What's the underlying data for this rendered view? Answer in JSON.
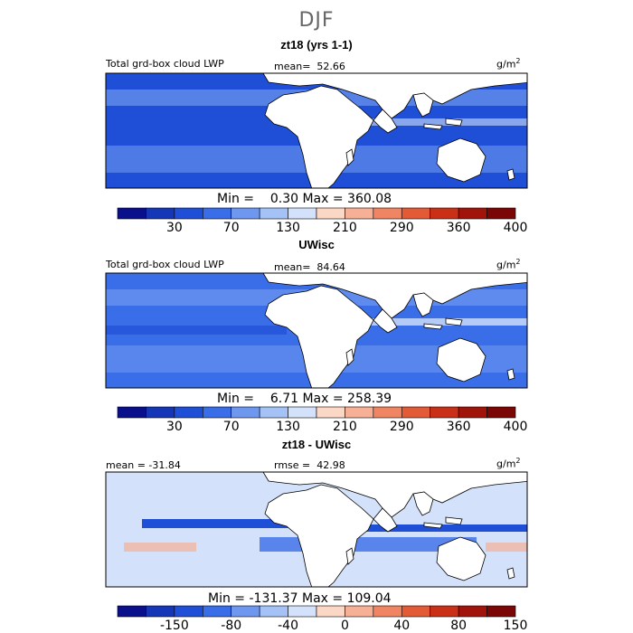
{
  "figure": {
    "title": "DJF",
    "panels": [
      {
        "subtitle": "zt18 (yrs 1-1)",
        "left_label": "Total grd-box cloud LWP",
        "center_label": "mean=  52.66",
        "units": "g/m",
        "units_sup": "2",
        "min_label": "Min =",
        "min_value": "0.30",
        "max_label": "Max =",
        "max_value": "360.08",
        "colorbar_ticks": [
          "30",
          "70",
          "130",
          "210",
          "290",
          "360",
          "400"
        ]
      },
      {
        "subtitle": "UWisc",
        "left_label": "Total grd-box cloud LWP",
        "center_label": "mean=  84.64",
        "units": "g/m",
        "units_sup": "2",
        "min_label": "Min =",
        "min_value": "6.71",
        "max_label": "Max =",
        "max_value": "258.39",
        "colorbar_ticks": [
          "30",
          "70",
          "130",
          "210",
          "290",
          "360",
          "400"
        ]
      },
      {
        "subtitle": "zt18 - UWisc",
        "left_label": "mean = -31.84",
        "center_label": "rmse =  42.98",
        "units": "g/m",
        "units_sup": "2",
        "min_label": "Min =",
        "min_value": "-131.37",
        "max_label": "Max =",
        "max_value": "109.04",
        "colorbar_ticks": [
          "-150",
          "-80",
          "-40",
          "0",
          "40",
          "80",
          "150"
        ]
      }
    ],
    "colorbar_colors": [
      "#0a0f8c",
      "#1636b8",
      "#1f4fd6",
      "#3a6de8",
      "#6e98f0",
      "#a4c2f6",
      "#d3e2fa",
      "#fbd8c6",
      "#f6b096",
      "#ef8563",
      "#e25a36",
      "#c93017",
      "#a1140a",
      "#7a0606"
    ],
    "colors": {
      "land": "#ffffff",
      "ocean_deep": "#1f4fd6",
      "ocean_mid": "#3a6de8",
      "ocean_light": "#6e98f0",
      "pale": "#d3e2fa",
      "warm": "#f6b096"
    }
  }
}
